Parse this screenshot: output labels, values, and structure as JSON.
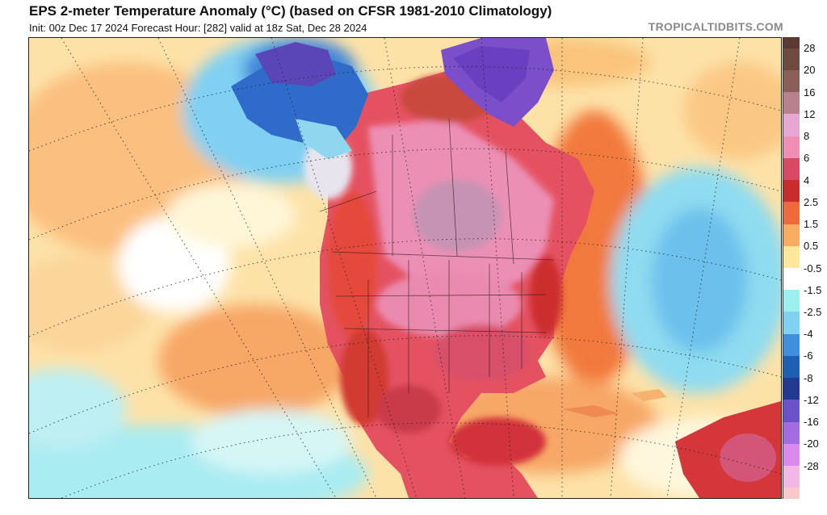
{
  "header": {
    "title": "EPS 2-meter Temperature Anomaly (°C) (based on CFSR 1981-2010 Climatology)",
    "subtitle": "Init: 00z Dec 17 2024   Forecast Hour: [282]   valid at 18z Sat, Dec 28 2024",
    "brand": "TROPICALTIDBITS.COM"
  },
  "colorbar": {
    "levels": [
      {
        "label": "28",
        "color": "#6e4b3e"
      },
      {
        "label": "20",
        "color": "#8a5f58"
      },
      {
        "label": "16",
        "color": "#b8828c"
      },
      {
        "label": "12",
        "color": "#e8a6d2"
      },
      {
        "label": "8",
        "color": "#ef8fb4"
      },
      {
        "label": "6",
        "color": "#d84a63"
      },
      {
        "label": "4",
        "color": "#c72d2d"
      },
      {
        "label": "2.5",
        "color": "#ee6a3c"
      },
      {
        "label": "1.5",
        "color": "#f8ab62"
      },
      {
        "label": "0.5",
        "color": "#fce79a"
      },
      {
        "label": "-0.5",
        "color": "#ffffff"
      },
      {
        "label": "-1.5",
        "color": "#9ef0ef"
      },
      {
        "label": "-2.5",
        "color": "#80d2f2"
      },
      {
        "label": "-4",
        "color": "#3f8fdd"
      },
      {
        "label": "-6",
        "color": "#1d5fb0"
      },
      {
        "label": "-8",
        "color": "#1f3a8e"
      },
      {
        "label": "-12",
        "color": "#6a52c9"
      },
      {
        "label": "-16",
        "color": "#a46ddf"
      },
      {
        "label": "-20",
        "color": "#d98aea"
      },
      {
        "label": "-28",
        "color": "#f1b8e6"
      }
    ],
    "top_color": "#5a3a32",
    "bottom_color": "#f8c9c9"
  }
}
